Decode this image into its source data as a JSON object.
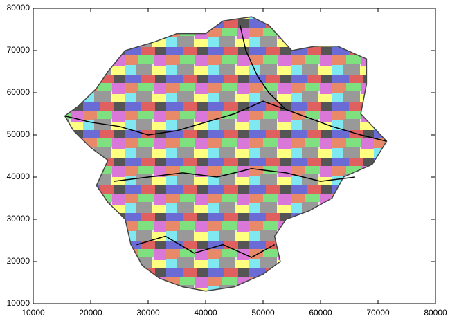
{
  "chart_data": {
    "type": "area-map",
    "xlim": [
      10000,
      80000
    ],
    "ylim": [
      10000,
      80000
    ],
    "xticks": [
      10000,
      20000,
      30000,
      40000,
      50000,
      60000,
      70000,
      80000
    ],
    "yticks": [
      10000,
      20000,
      30000,
      40000,
      50000,
      60000,
      70000,
      80000
    ],
    "boundary": {
      "x": [
        15500,
        18000,
        21000,
        23000,
        26000,
        31000,
        35000,
        40000,
        43000,
        48000,
        51000,
        55000,
        59000,
        63000,
        68000,
        68000,
        67000,
        71500,
        69000,
        64000,
        62000,
        58000,
        54000,
        52000,
        53000,
        50000,
        45000,
        40000,
        36000,
        32000,
        29000,
        27000,
        26000,
        23000,
        21000,
        23000,
        20000,
        17000
      ],
      "y": [
        54500,
        57000,
        61000,
        65000,
        70000,
        72000,
        74000,
        74000,
        77000,
        78000,
        76000,
        70000,
        71000,
        71000,
        68000,
        62000,
        55000,
        48500,
        43000,
        40000,
        35000,
        32000,
        30000,
        26000,
        20000,
        17000,
        14000,
        13000,
        14000,
        16000,
        19000,
        24000,
        30000,
        34000,
        38000,
        44000,
        47000,
        51000
      ]
    },
    "rivers": [
      {
        "x": [
          15500,
          20000,
          25000,
          30000,
          35000,
          40000,
          45000,
          50000,
          56000,
          62000,
          67000,
          71500
        ],
        "y": [
          54500,
          53000,
          52000,
          50000,
          51000,
          53000,
          55000,
          58000,
          55000,
          52000,
          50000,
          48500
        ]
      },
      {
        "x": [
          24000,
          30000,
          36000,
          42000,
          48000,
          54000,
          60000,
          66000
        ],
        "y": [
          39000,
          40000,
          41000,
          40000,
          42000,
          41000,
          39000,
          40000
        ]
      },
      {
        "x": [
          28000,
          33000,
          38000,
          43000,
          48000,
          52000
        ],
        "y": [
          24000,
          26000,
          22000,
          24000,
          21000,
          24000
        ]
      },
      {
        "x": [
          46000,
          47000,
          49000,
          51000,
          54000
        ],
        "y": [
          76000,
          70000,
          64000,
          60000,
          56000
        ]
      }
    ]
  }
}
